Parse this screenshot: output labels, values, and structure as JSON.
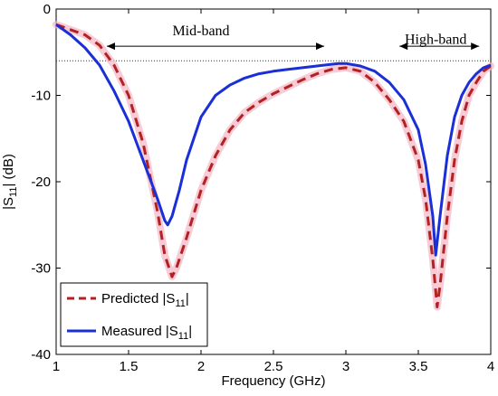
{
  "chart_data": {
    "type": "line",
    "xlabel": "Frequency (GHz)",
    "ylabel": {
      "main": "|S",
      "sub": "11",
      "tail": "| (dB)"
    },
    "xlim": [
      1,
      4
    ],
    "ylim": [
      -40,
      0
    ],
    "xticks": [
      "1",
      "1.5",
      "2",
      "2.5",
      "3",
      "3.5",
      "4"
    ],
    "yticks": [
      "0",
      "-10",
      "-20",
      "-30",
      "-40"
    ],
    "grid": false,
    "legend_position": "bottom-left",
    "reference_line": {
      "y": -6,
      "style": "dotted"
    },
    "annotations": [
      {
        "text": "Mid-band",
        "x_start": 1.35,
        "x_end": 2.85,
        "y": -4.3,
        "label_x": 2.0,
        "label_y": -2.5
      },
      {
        "text": "High-band",
        "x_start": 3.37,
        "x_end": 3.92,
        "y": -4.3,
        "label_x": 3.62,
        "label_y": -3.5
      }
    ],
    "series": [
      {
        "name": "Predicted |S11|",
        "legend": {
          "main": "Predicted |S",
          "sub": "11",
          "tail": "|"
        },
        "color": "#b22222",
        "style": "dashed",
        "x": [
          1.0,
          1.1,
          1.2,
          1.3,
          1.4,
          1.5,
          1.6,
          1.7,
          1.75,
          1.8,
          1.83,
          1.9,
          2.0,
          2.1,
          2.2,
          2.3,
          2.4,
          2.5,
          2.6,
          2.7,
          2.8,
          2.9,
          3.0,
          3.1,
          3.2,
          3.3,
          3.4,
          3.5,
          3.55,
          3.6,
          3.63,
          3.65,
          3.7,
          3.75,
          3.8,
          3.85,
          3.9,
          3.95,
          4.0
        ],
        "values": [
          -1.8,
          -2.4,
          -3.0,
          -4.2,
          -6.5,
          -10.0,
          -15.5,
          -23.5,
          -28.5,
          -31.0,
          -30.0,
          -26.5,
          -21.0,
          -17.0,
          -14.0,
          -12.0,
          -10.8,
          -9.8,
          -9.0,
          -8.2,
          -7.5,
          -7.0,
          -6.8,
          -7.2,
          -8.5,
          -10.5,
          -13.0,
          -17.5,
          -22.0,
          -29.0,
          -34.5,
          -32.0,
          -24.0,
          -17.5,
          -13.0,
          -10.0,
          -8.5,
          -7.2,
          -6.6
        ]
      },
      {
        "name": "Measured |S11|",
        "legend": {
          "main": "Measured |S",
          "sub": "11",
          "tail": "|"
        },
        "color": "#1a2fd6",
        "style": "solid",
        "x": [
          1.0,
          1.1,
          1.2,
          1.3,
          1.4,
          1.5,
          1.6,
          1.7,
          1.75,
          1.77,
          1.8,
          1.85,
          1.9,
          2.0,
          2.1,
          2.2,
          2.3,
          2.4,
          2.5,
          2.6,
          2.7,
          2.8,
          2.9,
          2.95,
          3.0,
          3.1,
          3.2,
          3.3,
          3.4,
          3.5,
          3.55,
          3.6,
          3.62,
          3.65,
          3.7,
          3.75,
          3.8,
          3.85,
          3.9,
          3.95,
          4.0
        ],
        "values": [
          -1.8,
          -3.0,
          -4.5,
          -6.5,
          -9.5,
          -13.0,
          -17.5,
          -22.0,
          -24.5,
          -25.0,
          -24.0,
          -21.0,
          -17.5,
          -12.5,
          -10.0,
          -8.8,
          -8.0,
          -7.5,
          -7.2,
          -7.0,
          -6.8,
          -6.6,
          -6.4,
          -6.3,
          -6.3,
          -6.6,
          -7.2,
          -8.5,
          -10.5,
          -14.0,
          -18.0,
          -24.0,
          -28.5,
          -24.0,
          -17.0,
          -12.5,
          -10.0,
          -8.5,
          -7.5,
          -6.8,
          -6.5
        ]
      }
    ]
  }
}
